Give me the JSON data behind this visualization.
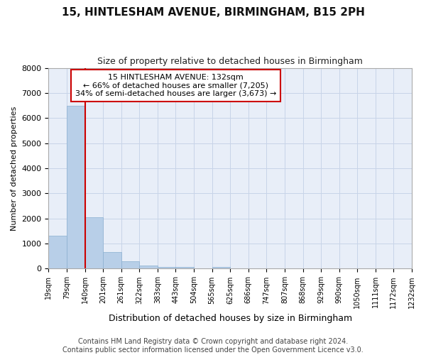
{
  "title1": "15, HINTLESHAM AVENUE, BIRMINGHAM, B15 2PH",
  "title2": "Size of property relative to detached houses in Birmingham",
  "xlabel": "Distribution of detached houses by size in Birmingham",
  "ylabel": "Number of detached properties",
  "footer1": "Contains HM Land Registry data © Crown copyright and database right 2024.",
  "footer2": "Contains public sector information licensed under the Open Government Licence v3.0.",
  "bin_edges": [
    "19sqm",
    "79sqm",
    "140sqm",
    "201sqm",
    "261sqm",
    "322sqm",
    "383sqm",
    "443sqm",
    "504sqm",
    "565sqm",
    "625sqm",
    "686sqm",
    "747sqm",
    "807sqm",
    "868sqm",
    "929sqm",
    "990sqm",
    "1050sqm",
    "1111sqm",
    "1172sqm",
    "1232sqm"
  ],
  "bar_values": [
    1300,
    6500,
    2050,
    650,
    290,
    130,
    75,
    55,
    0,
    70,
    0,
    0,
    0,
    0,
    0,
    0,
    0,
    0,
    0,
    0
  ],
  "bar_color": "#b8cfe8",
  "bar_edge_color": "#8aafd0",
  "grid_color": "#c8d4e8",
  "background_color": "#e8eef8",
  "red_line_color": "#cc0000",
  "red_line_bin": 2,
  "annotation_text": "15 HINTLESHAM AVENUE: 132sqm\n← 66% of detached houses are smaller (7,205)\n34% of semi-detached houses are larger (3,673) →",
  "annotation_box_color": "#cc0000",
  "ylim": [
    0,
    8000
  ],
  "yticks": [
    0,
    1000,
    2000,
    3000,
    4000,
    5000,
    6000,
    7000,
    8000
  ],
  "title1_fontsize": 11,
  "title2_fontsize": 9,
  "xlabel_fontsize": 9,
  "ylabel_fontsize": 8,
  "tick_fontsize": 7,
  "annotation_fontsize": 8,
  "footer_fontsize": 7
}
